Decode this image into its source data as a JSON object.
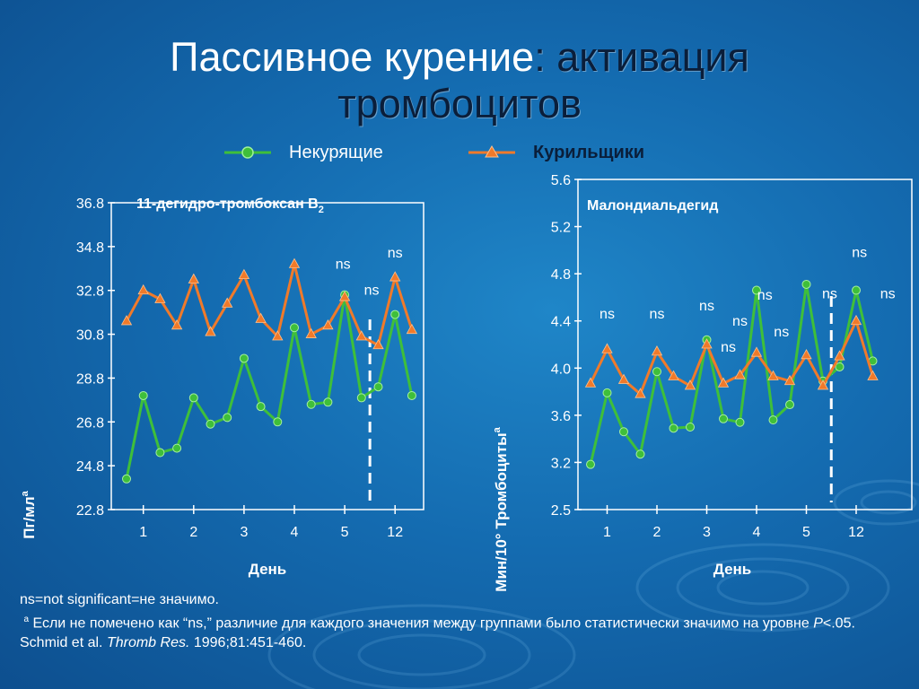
{
  "title": {
    "main": "Пассивное курение",
    "accent": ": активация",
    "line2": "тромбоцитов"
  },
  "legend": {
    "nonsmokers": {
      "label": "Некурящие",
      "color": "#3fbf3a",
      "marker": "circle"
    },
    "smokers": {
      "label": "Курильщики",
      "color": "#f07a2a",
      "marker": "triangle"
    }
  },
  "colors": {
    "frame": "#ffffff",
    "dashed_line": "#ffffff"
  },
  "chart_data": [
    {
      "type": "line",
      "title": "11-дегидро-тромбоксан B",
      "title_subscript": "2",
      "ylabel": "Пг/мл",
      "ylabel_superscript": "a",
      "xlabel": "День",
      "ylim": [
        22.8,
        36.8
      ],
      "yticks": [
        "22.8",
        "24.8",
        "26.8",
        "28.8",
        "30.8",
        "32.8",
        "34.8",
        "36.8"
      ],
      "xticks": [
        {
          "label": "1",
          "at": 2
        },
        {
          "label": "2",
          "at": 5
        },
        {
          "label": "3",
          "at": 8
        },
        {
          "label": "4",
          "at": 11
        },
        {
          "label": "5",
          "at": 14
        },
        {
          "label": "12",
          "at": 17
        }
      ],
      "x": [
        1,
        2,
        3,
        4,
        5,
        6,
        7,
        8,
        9,
        10,
        11,
        12,
        13,
        14,
        15,
        16,
        17,
        18
      ],
      "divider_after_x": 15.5,
      "series": [
        {
          "name": "Некурящие",
          "values": [
            24.2,
            28.0,
            25.4,
            25.6,
            27.9,
            26.7,
            27.0,
            29.7,
            27.5,
            26.8,
            31.1,
            27.6,
            27.7,
            32.6,
            27.9,
            28.4,
            31.7,
            28.0
          ]
        },
        {
          "name": "Курильщики",
          "values": [
            31.4,
            32.8,
            32.4,
            31.2,
            33.3,
            30.9,
            32.2,
            33.5,
            31.5,
            30.7,
            34.0,
            30.8,
            31.2,
            32.5,
            30.7,
            30.3,
            33.4,
            31.0
          ]
        }
      ],
      "annotations": [
        {
          "text": "ns",
          "x": 13.9,
          "y": 33.8
        },
        {
          "text": "ns",
          "x": 15.6,
          "y": 32.6
        },
        {
          "text": "ns",
          "x": 17.0,
          "y": 34.3
        }
      ]
    },
    {
      "type": "line",
      "title": "Малондиальдегид",
      "ylabel": "Мин/10° Тромбоциты",
      "ylabel_superscript": "a",
      "xlabel": "День",
      "ylim": [
        2.5,
        5.6
      ],
      "yticks": [
        "2.5",
        "3.2",
        "3.6",
        "4.0",
        "4.4",
        "4.8",
        "5.2",
        "5.6"
      ],
      "xticks": [
        {
          "label": "1",
          "at": 2
        },
        {
          "label": "2",
          "at": 5
        },
        {
          "label": "3",
          "at": 8
        },
        {
          "label": "4",
          "at": 11
        },
        {
          "label": "5",
          "at": 14
        },
        {
          "label": "12",
          "at": 17
        }
      ],
      "x": [
        1,
        2,
        3,
        4,
        5,
        6,
        7,
        8,
        9,
        10,
        11,
        12,
        13,
        14,
        15,
        16,
        17,
        18
      ],
      "divider_after_x": 15.5,
      "series": [
        {
          "name": "Некурящие",
          "values": [
            3.17,
            3.79,
            3.46,
            3.27,
            3.97,
            3.49,
            3.5,
            4.24,
            3.57,
            3.54,
            4.66,
            3.56,
            3.69,
            4.71,
            3.89,
            4.01,
            4.66,
            4.06
          ]
        },
        {
          "name": "Курильщики",
          "values": [
            3.87,
            4.16,
            3.9,
            3.78,
            4.14,
            3.93,
            3.85,
            4.2,
            3.87,
            3.94,
            4.13,
            3.93,
            3.89,
            4.11,
            3.85,
            4.1,
            4.4,
            3.93
          ]
        }
      ],
      "annotations": [
        {
          "text": "ns",
          "x": 2.0,
          "y": 4.42
        },
        {
          "text": "ns",
          "x": 5.0,
          "y": 4.42
        },
        {
          "text": "ns",
          "x": 8.0,
          "y": 4.49
        },
        {
          "text": "ns",
          "x": 9.3,
          "y": 4.14
        },
        {
          "text": "ns",
          "x": 10.0,
          "y": 4.36
        },
        {
          "text": "ns",
          "x": 11.5,
          "y": 4.58
        },
        {
          "text": "ns",
          "x": 12.5,
          "y": 4.27
        },
        {
          "text": "ns",
          "x": 15.4,
          "y": 4.59
        },
        {
          "text": "ns",
          "x": 17.2,
          "y": 4.94
        },
        {
          "text": "ns",
          "x": 18.9,
          "y": 4.59
        }
      ]
    }
  ],
  "footnotes": {
    "ns": "ns=not significant=не значимо.",
    "a_marker": "a",
    "a_text": "Если не помечено как “ns,” различие для каждого значения между группами было статистически значимо на уровне",
    "p_symbol": "P",
    "p_value": "<.05.",
    "ref_authors": "Schmid et al.",
    "ref_journal": "Thromb Res.",
    "ref_details": "1996;81:451-460."
  }
}
